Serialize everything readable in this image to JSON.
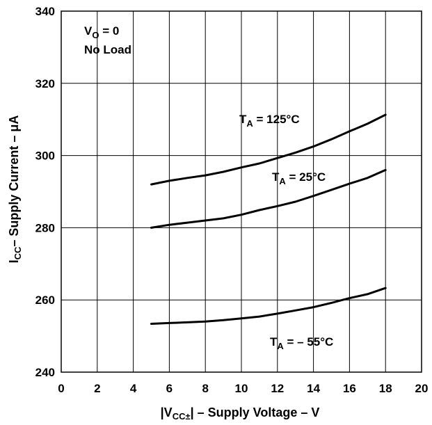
{
  "chart_data": {
    "type": "line",
    "title": "",
    "xlabel": {
      "prefix": "|V",
      "subscript": "CC±",
      "suffix": "| – Supply Voltage – V"
    },
    "ylabel": {
      "prefix": "I",
      "subscript": "CC",
      "suffix": "– Supply Current – μA"
    },
    "xlim": [
      0,
      20
    ],
    "ylim": [
      240,
      340
    ],
    "xticks": [
      0,
      2,
      4,
      6,
      8,
      10,
      12,
      14,
      16,
      18,
      20
    ],
    "yticks": [
      240,
      260,
      280,
      300,
      320,
      340
    ],
    "grid": true,
    "conditions": [
      {
        "prefix": "V",
        "subscript": "O",
        "suffix": " = 0"
      },
      {
        "prefix": "No Load",
        "subscript": "",
        "suffix": ""
      }
    ],
    "series": [
      {
        "label": {
          "prefix": "T",
          "subscript": "A",
          "suffix": " = 125°C"
        },
        "x": [
          5,
          6,
          7,
          8,
          9,
          10,
          11,
          12,
          13,
          14,
          15,
          16,
          17,
          18
        ],
        "y": [
          292,
          293,
          293.8,
          294.5,
          295.5,
          296.7,
          297.8,
          299.3,
          300.8,
          302.5,
          304.5,
          306.7,
          308.8,
          311.3
        ]
      },
      {
        "label": {
          "prefix": "T",
          "subscript": "A",
          "suffix": " = 25°C"
        },
        "x": [
          5,
          6,
          7,
          8,
          9,
          10,
          11,
          12,
          13,
          14,
          15,
          16,
          17,
          18
        ],
        "y": [
          280,
          280.8,
          281.4,
          282,
          282.6,
          283.6,
          284.9,
          286,
          287.2,
          288.8,
          290.5,
          292.2,
          293.8,
          296
        ]
      },
      {
        "label": {
          "prefix": "T",
          "subscript": "A",
          "suffix": " = – 55°C"
        },
        "x": [
          5,
          6,
          7,
          8,
          9,
          10,
          11,
          12,
          13,
          14,
          15,
          16,
          17,
          18
        ],
        "y": [
          253.4,
          253.6,
          253.8,
          254,
          254.4,
          254.9,
          255.4,
          256.2,
          257.1,
          258,
          259.2,
          260.5,
          261.6,
          263.3
        ]
      }
    ]
  }
}
